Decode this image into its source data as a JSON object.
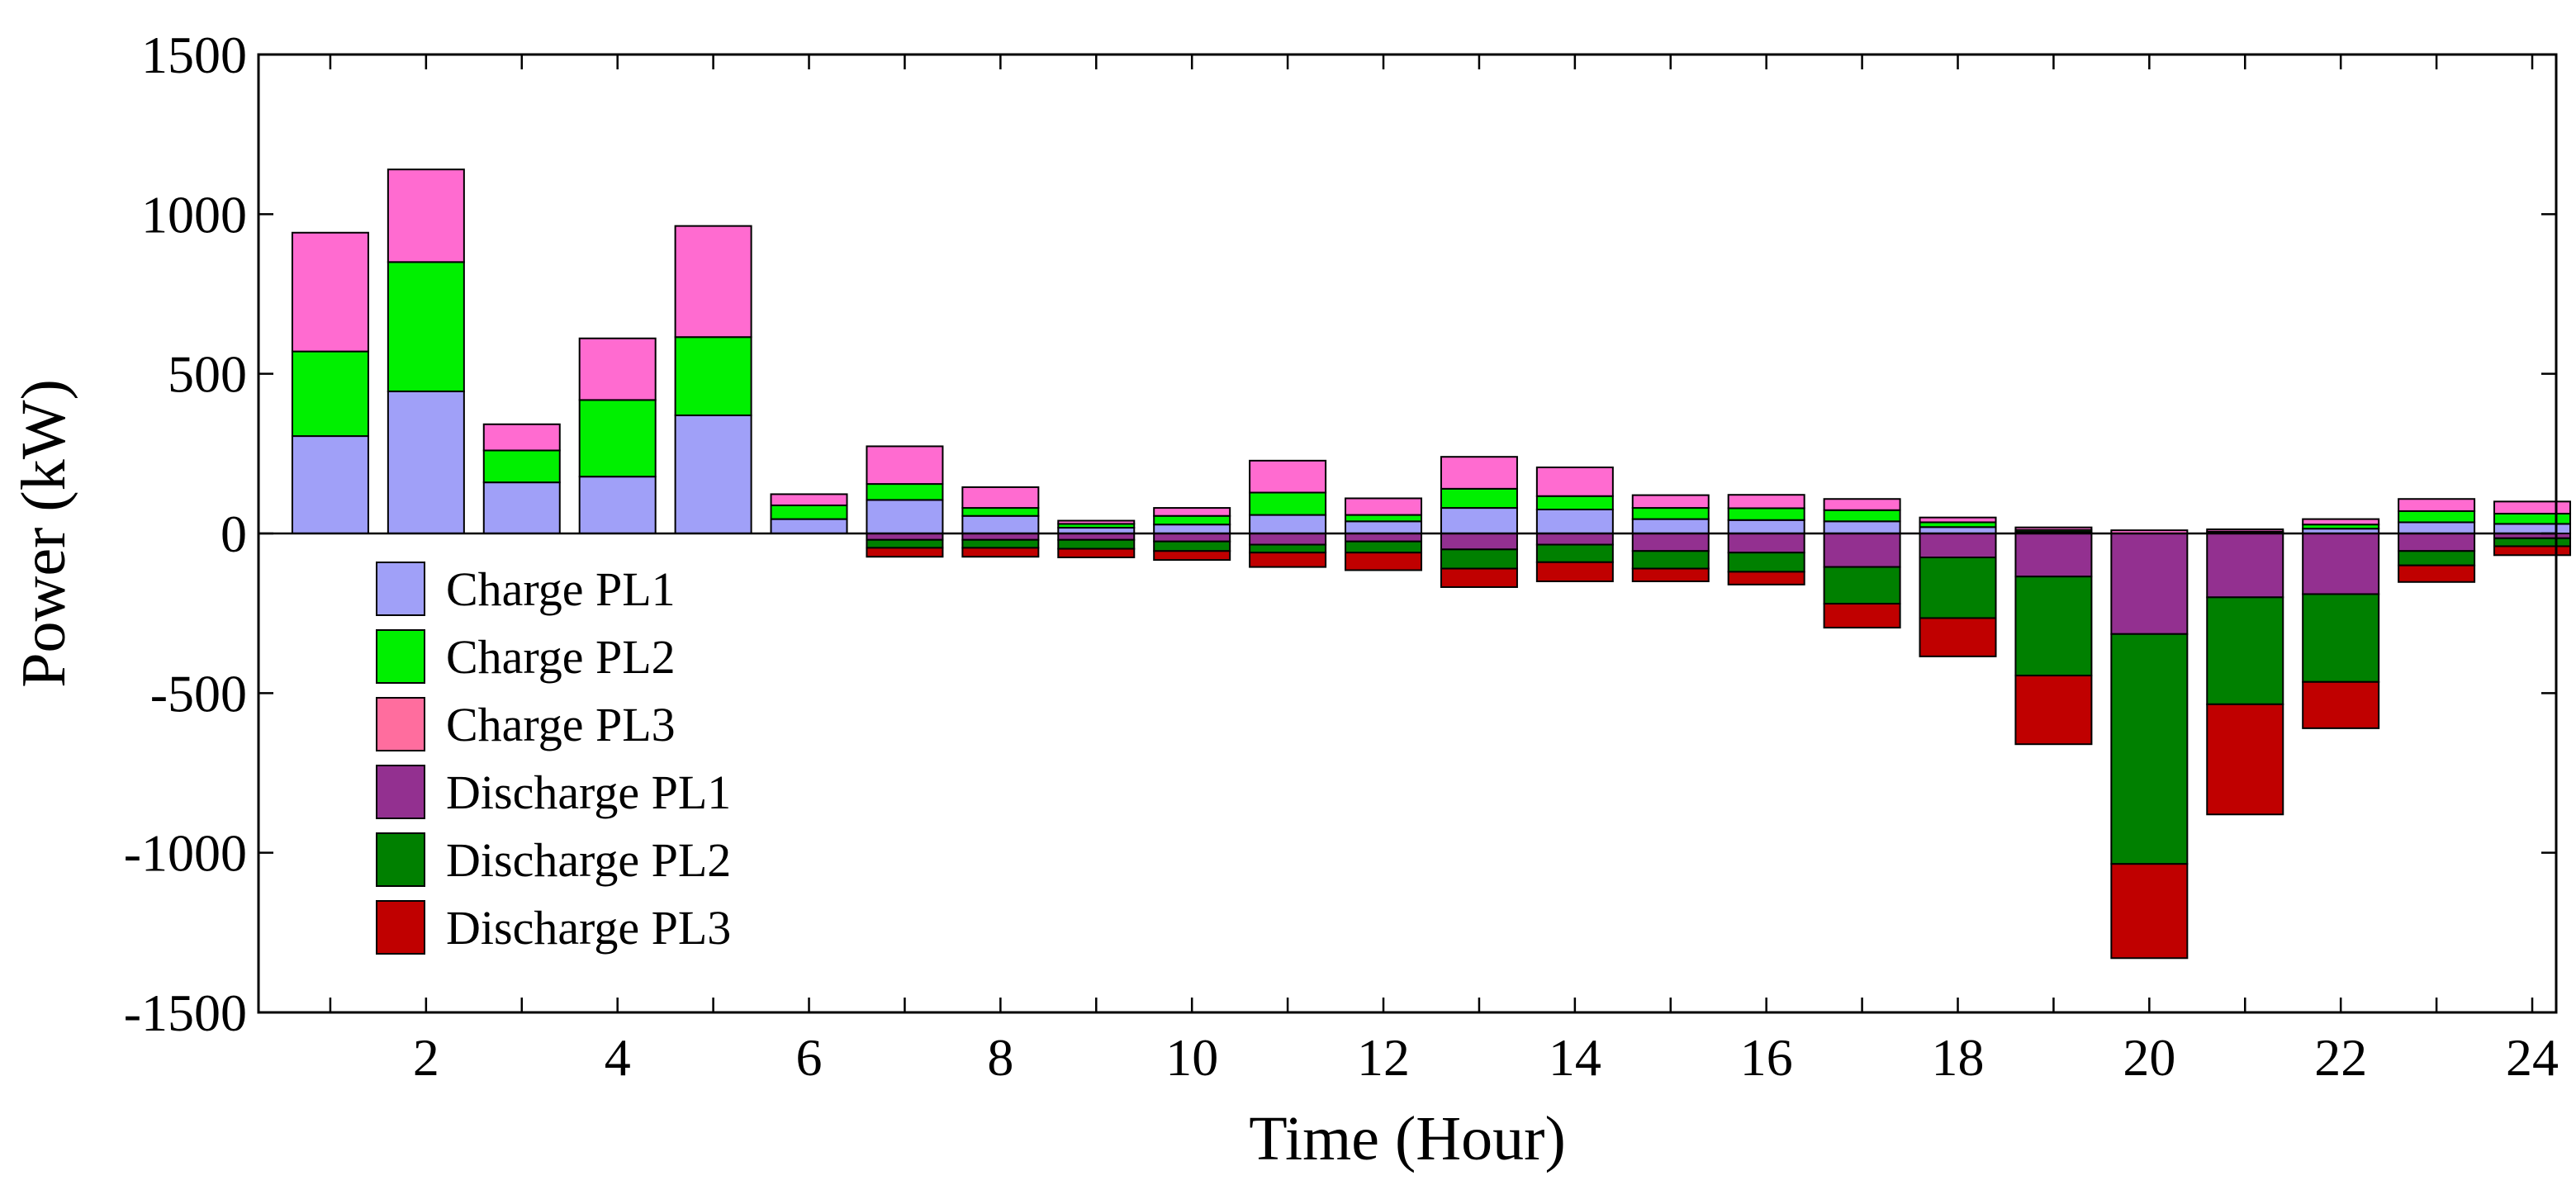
{
  "chart_data": {
    "type": "bar",
    "stacked": true,
    "title": "",
    "xlabel": "Time (Hour)",
    "ylabel": "Power (kW)",
    "ylim": [
      -1500,
      1500
    ],
    "yticks": [
      -1500,
      -1000,
      -500,
      0,
      500,
      1000,
      1500
    ],
    "xlim": [
      0.25,
      24.25
    ],
    "xtick_labels_shown": [
      2,
      4,
      6,
      8,
      10,
      12,
      14,
      16,
      18,
      20,
      22,
      24
    ],
    "grid": false,
    "legend_position": "lower-left",
    "categories": [
      1,
      2,
      3,
      4,
      5,
      6,
      7,
      8,
      9,
      10,
      11,
      12,
      13,
      14,
      15,
      16,
      17,
      18,
      19,
      20,
      21,
      22,
      23,
      24
    ],
    "series": [
      {
        "name": "Charge PL1",
        "color": "#A0A0F8",
        "values": [
          305,
          445,
          160,
          178,
          370,
          45,
          105,
          55,
          18,
          28,
          58,
          38,
          80,
          75,
          45,
          42,
          38,
          20,
          5,
          0,
          3,
          15,
          35,
          30
        ]
      },
      {
        "name": "Charge PL2",
        "color": "#00F000",
        "values": [
          265,
          405,
          100,
          240,
          245,
          43,
          50,
          25,
          12,
          27,
          70,
          20,
          60,
          42,
          35,
          37,
          35,
          15,
          6,
          0,
          3,
          13,
          35,
          32
        ]
      },
      {
        "name": "Charge PL3",
        "color": "#FF6BD0",
        "values": [
          372,
          290,
          82,
          193,
          348,
          35,
          118,
          65,
          10,
          25,
          100,
          52,
          100,
          90,
          40,
          42,
          35,
          15,
          8,
          10,
          7,
          17,
          38,
          38
        ]
      },
      {
        "name": "Discharge PL1",
        "color": "#933090",
        "values": [
          0,
          0,
          0,
          0,
          0,
          0,
          -20,
          -20,
          -20,
          -25,
          -35,
          -25,
          -50,
          -35,
          -55,
          -60,
          -105,
          -75,
          -135,
          -315,
          -200,
          -190,
          -55,
          -15
        ]
      },
      {
        "name": "Discharge PL2",
        "color": "#008000",
        "values": [
          0,
          0,
          0,
          0,
          0,
          0,
          -25,
          -25,
          -28,
          -30,
          -25,
          -35,
          -60,
          -55,
          -55,
          -60,
          -115,
          -190,
          -310,
          -720,
          -335,
          -275,
          -45,
          -25
        ]
      },
      {
        "name": "Discharge PL3",
        "color": "#C00000",
        "values": [
          0,
          0,
          0,
          0,
          0,
          0,
          -28,
          -28,
          -27,
          -28,
          -45,
          -55,
          -58,
          -60,
          -40,
          -40,
          -75,
          -120,
          -215,
          -295,
          -345,
          -145,
          -52,
          -28
        ]
      }
    ],
    "legend_swatch_colors": [
      "#A0A0F8",
      "#00F000",
      "#FF6D9E",
      "#933090",
      "#008000",
      "#C00000"
    ]
  }
}
